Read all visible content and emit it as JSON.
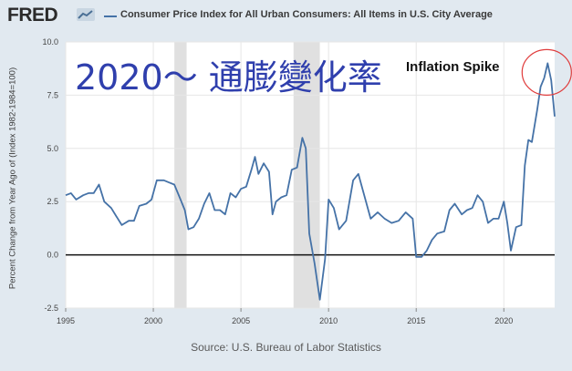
{
  "header": {
    "logo_text": "FRED",
    "series_title": "Consumer Price Index for All Urban Consumers: All Items in U.S. City Average"
  },
  "source_text": "Source: U.S. Bureau of Labor Statistics",
  "annotations": {
    "main": "2020～ 通膨變化率",
    "spike": "Inflation Spike"
  },
  "colors": {
    "series": "#4572a7",
    "recession": "#e0e0e0",
    "highlight_circle": "#e03c3c",
    "annotation_main": "#2f3fad"
  },
  "chart_data": {
    "type": "line",
    "ylabel": "Percent Change from Year Ago of (Index 1982-1984=100)",
    "xlim": [
      1995,
      2022.9
    ],
    "ylim": [
      -2.5,
      10.0
    ],
    "y_ticks": [
      "-2.5",
      "0.0",
      "2.5",
      "5.0",
      "7.5",
      "10.0"
    ],
    "x_ticks": [
      "1995",
      "2000",
      "2005",
      "2010",
      "2015",
      "2020"
    ],
    "grid": true,
    "zero_line": true,
    "recession_periods": [
      [
        2001.2,
        2001.9
      ],
      [
        2008.0,
        2009.5
      ]
    ],
    "series": [
      {
        "x": [
          1995,
          1995.3,
          1995.6,
          1996,
          1996.3,
          1996.6,
          1996.9,
          1997.2,
          1997.6,
          1997.9,
          1998.2,
          1998.6,
          1998.9,
          1999.2,
          1999.6,
          1999.9,
          2000.2,
          2000.6,
          2000.9,
          2001.2,
          2001.5,
          2001.8,
          2002.0,
          2002.3,
          2002.6,
          2002.9,
          2003.2,
          2003.5,
          2003.8,
          2004.1,
          2004.4,
          2004.7,
          2005.0,
          2005.3,
          2005.6,
          2005.8,
          2006.0,
          2006.3,
          2006.6,
          2006.8,
          2007.0,
          2007.3,
          2007.6,
          2007.9,
          2008.2,
          2008.5,
          2008.7,
          2008.9,
          2009.2,
          2009.5,
          2009.8,
          2010.0,
          2010.3,
          2010.6,
          2011.0,
          2011.4,
          2011.7,
          2012.0,
          2012.4,
          2012.8,
          2013.2,
          2013.6,
          2014.0,
          2014.4,
          2014.8,
          2015.0,
          2015.3,
          2015.6,
          2015.9,
          2016.2,
          2016.6,
          2016.9,
          2017.2,
          2017.6,
          2017.9,
          2018.2,
          2018.5,
          2018.8,
          2019.1,
          2019.4,
          2019.7,
          2020.0,
          2020.2,
          2020.4,
          2020.7,
          2021.0,
          2021.2,
          2021.4,
          2021.6,
          2021.9,
          2022.1,
          2022.3,
          2022.5,
          2022.7,
          2022.9
        ],
        "y": [
          2.8,
          2.9,
          2.6,
          2.8,
          2.9,
          2.9,
          3.3,
          2.5,
          2.2,
          1.8,
          1.4,
          1.6,
          1.6,
          2.3,
          2.4,
          2.6,
          3.5,
          3.5,
          3.4,
          3.3,
          2.7,
          2.1,
          1.2,
          1.3,
          1.7,
          2.4,
          2.9,
          2.1,
          2.1,
          1.9,
          2.9,
          2.7,
          3.1,
          3.2,
          4.0,
          4.6,
          3.8,
          4.3,
          3.9,
          1.9,
          2.5,
          2.7,
          2.8,
          4.0,
          4.1,
          5.5,
          5.0,
          1.0,
          -0.4,
          -2.1,
          -0.2,
          2.6,
          2.2,
          1.2,
          1.6,
          3.5,
          3.8,
          2.9,
          1.7,
          2.0,
          1.7,
          1.5,
          1.6,
          2.0,
          1.7,
          -0.1,
          -0.1,
          0.2,
          0.7,
          1.0,
          1.1,
          2.1,
          2.4,
          1.9,
          2.1,
          2.2,
          2.8,
          2.5,
          1.5,
          1.7,
          1.7,
          2.5,
          1.5,
          0.2,
          1.3,
          1.4,
          4.2,
          5.4,
          5.3,
          6.8,
          7.9,
          8.3,
          9.0,
          8.2,
          6.5
        ]
      }
    ]
  }
}
